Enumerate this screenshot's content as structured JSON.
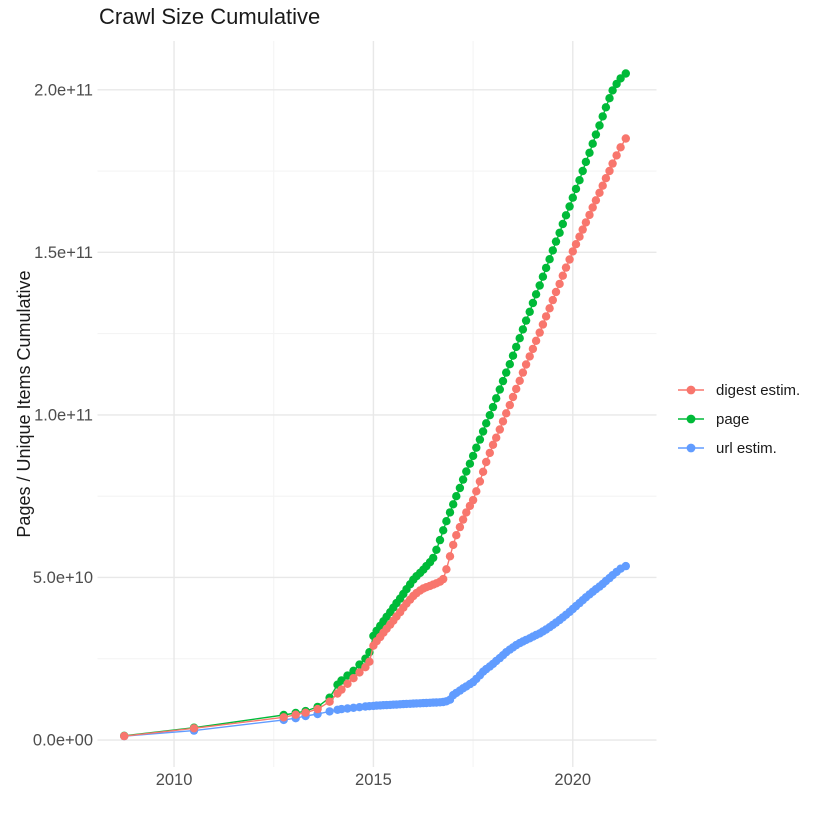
{
  "chart_data": {
    "type": "line",
    "markers": true,
    "title": "Crawl Size Cumulative",
    "xlabel": "",
    "ylabel": "Pages / Unique Items Cumulative",
    "value_unit": "pages, stored in billions (1e9)",
    "grid": true,
    "legend_position": "right",
    "xlim": [
      2008.08,
      2022.1
    ],
    "ylim_billions": [
      -8.3,
      215
    ],
    "x_ticks": {
      "values": [
        2010,
        2015,
        2020
      ],
      "labels": [
        "2010",
        "2015",
        "2020"
      ]
    },
    "x_minor_ticks": [
      2012.5,
      2017.5
    ],
    "y_ticks": {
      "values_billions": [
        0,
        50,
        100,
        150,
        200
      ],
      "labels": [
        "0.0e+00",
        "5.0e+10",
        "1.0e+11",
        "1.5e+11",
        "2.0e+11"
      ]
    },
    "y_minor_ticks_billions": [
      25,
      75,
      125,
      175
    ],
    "colors": {
      "grid_major": "#E8E8E8",
      "grid_minor": "#F4F4F4",
      "tick_text": "#4D4D4D",
      "title_text": "#1A1A1A"
    },
    "series": [
      {
        "name": "digest estim.",
        "color": "#F8766D",
        "points_year_billions": [
          [
            2008.75,
            1.2
          ],
          [
            2010.5,
            3.6
          ],
          [
            2012.75,
            7.0
          ],
          [
            2013.05,
            7.8
          ],
          [
            2013.3,
            8.4
          ],
          [
            2013.6,
            9.5
          ],
          [
            2013.9,
            11.8
          ],
          [
            2014.1,
            14.3
          ],
          [
            2014.2,
            15.5
          ],
          [
            2014.35,
            17.3
          ],
          [
            2014.5,
            19.0
          ],
          [
            2014.65,
            20.8
          ],
          [
            2014.8,
            22.4
          ],
          [
            2014.9,
            24.1
          ],
          [
            2015.0,
            29.0
          ],
          [
            2015.08,
            30.4
          ],
          [
            2015.17,
            31.7
          ],
          [
            2015.25,
            33.0
          ],
          [
            2015.33,
            34.2
          ],
          [
            2015.42,
            35.5
          ],
          [
            2015.5,
            36.7
          ],
          [
            2015.58,
            38.0
          ],
          [
            2015.67,
            39.3
          ],
          [
            2015.75,
            40.7
          ],
          [
            2015.83,
            42.0
          ],
          [
            2015.92,
            43.2
          ],
          [
            2016.0,
            44.3
          ],
          [
            2016.08,
            45.2
          ],
          [
            2016.17,
            46.0
          ],
          [
            2016.25,
            46.6
          ],
          [
            2016.33,
            47.0
          ],
          [
            2016.42,
            47.4
          ],
          [
            2016.5,
            47.8
          ],
          [
            2016.58,
            48.2
          ],
          [
            2016.67,
            48.7
          ],
          [
            2016.75,
            49.5
          ],
          [
            2016.83,
            52.5
          ],
          [
            2016.92,
            56.5
          ],
          [
            2017.0,
            60.0
          ],
          [
            2017.08,
            63.0
          ],
          [
            2017.17,
            65.5
          ],
          [
            2017.25,
            67.8
          ],
          [
            2017.33,
            70.0
          ],
          [
            2017.42,
            72.0
          ],
          [
            2017.5,
            73.8
          ],
          [
            2017.58,
            76.5
          ],
          [
            2017.67,
            79.5
          ],
          [
            2017.75,
            82.5
          ],
          [
            2017.83,
            85.5
          ],
          [
            2017.92,
            88.3
          ],
          [
            2018.0,
            90.8
          ],
          [
            2018.08,
            93.0
          ],
          [
            2018.17,
            95.5
          ],
          [
            2018.25,
            98.0
          ],
          [
            2018.33,
            100.5
          ],
          [
            2018.42,
            103.0
          ],
          [
            2018.5,
            105.5
          ],
          [
            2018.58,
            108.0
          ],
          [
            2018.67,
            110.5
          ],
          [
            2018.75,
            113.0
          ],
          [
            2018.83,
            115.5
          ],
          [
            2018.92,
            118.0
          ],
          [
            2019.0,
            120.3
          ],
          [
            2019.08,
            122.8
          ],
          [
            2019.17,
            125.3
          ],
          [
            2019.25,
            127.8
          ],
          [
            2019.33,
            130.3
          ],
          [
            2019.42,
            132.8
          ],
          [
            2019.5,
            135.3
          ],
          [
            2019.58,
            137.8
          ],
          [
            2019.67,
            140.3
          ],
          [
            2019.75,
            142.8
          ],
          [
            2019.83,
            145.3
          ],
          [
            2019.92,
            147.8
          ],
          [
            2020.0,
            150.3
          ],
          [
            2020.08,
            152.5
          ],
          [
            2020.17,
            154.8
          ],
          [
            2020.25,
            157.0
          ],
          [
            2020.33,
            159.2
          ],
          [
            2020.42,
            161.5
          ],
          [
            2020.5,
            163.8
          ],
          [
            2020.58,
            166.0
          ],
          [
            2020.67,
            168.3
          ],
          [
            2020.75,
            170.5
          ],
          [
            2020.83,
            172.8
          ],
          [
            2020.92,
            175.0
          ],
          [
            2021.0,
            177.3
          ],
          [
            2021.1,
            179.8
          ],
          [
            2021.2,
            182.3
          ],
          [
            2021.33,
            185.0
          ]
        ]
      },
      {
        "name": "page",
        "color": "#00BA38",
        "points_year_billions": [
          [
            2008.75,
            1.3
          ],
          [
            2010.5,
            3.8
          ],
          [
            2012.75,
            7.7
          ],
          [
            2013.05,
            8.3
          ],
          [
            2013.3,
            8.9
          ],
          [
            2013.6,
            10.2
          ],
          [
            2013.9,
            13.0
          ],
          [
            2014.1,
            17.0
          ],
          [
            2014.2,
            18.3
          ],
          [
            2014.35,
            19.8
          ],
          [
            2014.5,
            21.3
          ],
          [
            2014.65,
            23.2
          ],
          [
            2014.8,
            25.0
          ],
          [
            2014.9,
            27.0
          ],
          [
            2015.0,
            32.0
          ],
          [
            2015.08,
            33.6
          ],
          [
            2015.17,
            35.1
          ],
          [
            2015.25,
            36.5
          ],
          [
            2015.33,
            37.9
          ],
          [
            2015.42,
            39.3
          ],
          [
            2015.5,
            40.7
          ],
          [
            2015.58,
            42.1
          ],
          [
            2015.67,
            43.5
          ],
          [
            2015.75,
            44.9
          ],
          [
            2015.83,
            46.4
          ],
          [
            2015.92,
            47.9
          ],
          [
            2016.0,
            49.3
          ],
          [
            2016.08,
            50.4
          ],
          [
            2016.17,
            51.4
          ],
          [
            2016.25,
            52.4
          ],
          [
            2016.33,
            53.5
          ],
          [
            2016.42,
            54.7
          ],
          [
            2016.5,
            56.0
          ],
          [
            2016.58,
            58.5
          ],
          [
            2016.67,
            61.5
          ],
          [
            2016.75,
            64.5
          ],
          [
            2016.83,
            67.3
          ],
          [
            2016.92,
            70.0
          ],
          [
            2017.0,
            72.5
          ],
          [
            2017.08,
            75.0
          ],
          [
            2017.17,
            77.5
          ],
          [
            2017.25,
            80.1
          ],
          [
            2017.33,
            82.6
          ],
          [
            2017.42,
            85.0
          ],
          [
            2017.5,
            87.4
          ],
          [
            2017.58,
            89.9
          ],
          [
            2017.67,
            92.4
          ],
          [
            2017.75,
            94.9
          ],
          [
            2017.83,
            97.4
          ],
          [
            2017.92,
            99.9
          ],
          [
            2018.0,
            102.4
          ],
          [
            2018.08,
            105.1
          ],
          [
            2018.17,
            107.8
          ],
          [
            2018.25,
            110.4
          ],
          [
            2018.33,
            113.0
          ],
          [
            2018.42,
            115.6
          ],
          [
            2018.5,
            118.2
          ],
          [
            2018.58,
            120.9
          ],
          [
            2018.67,
            123.6
          ],
          [
            2018.75,
            126.3
          ],
          [
            2018.83,
            129.0
          ],
          [
            2018.92,
            131.7
          ],
          [
            2019.0,
            134.4
          ],
          [
            2019.08,
            137.1
          ],
          [
            2019.17,
            139.8
          ],
          [
            2019.25,
            142.5
          ],
          [
            2019.33,
            145.2
          ],
          [
            2019.42,
            147.9
          ],
          [
            2019.5,
            150.6
          ],
          [
            2019.58,
            153.3
          ],
          [
            2019.67,
            156.0
          ],
          [
            2019.75,
            158.7
          ],
          [
            2019.83,
            161.4
          ],
          [
            2019.92,
            164.1
          ],
          [
            2020.0,
            166.8
          ],
          [
            2020.08,
            169.5
          ],
          [
            2020.17,
            172.2
          ],
          [
            2020.25,
            175.0
          ],
          [
            2020.33,
            177.8
          ],
          [
            2020.42,
            180.6
          ],
          [
            2020.5,
            183.4
          ],
          [
            2020.58,
            186.2
          ],
          [
            2020.67,
            189.0
          ],
          [
            2020.75,
            191.8
          ],
          [
            2020.83,
            194.6
          ],
          [
            2020.92,
            197.4
          ],
          [
            2021.0,
            199.8
          ],
          [
            2021.1,
            201.8
          ],
          [
            2021.2,
            203.5
          ],
          [
            2021.33,
            205.0
          ]
        ]
      },
      {
        "name": "url estim.",
        "color": "#619CFF",
        "points_year_billions": [
          [
            2008.75,
            1.2
          ],
          [
            2010.5,
            2.9
          ],
          [
            2012.75,
            6.2
          ],
          [
            2013.05,
            6.7
          ],
          [
            2013.3,
            7.4
          ],
          [
            2013.6,
            8.0
          ],
          [
            2013.9,
            8.8
          ],
          [
            2014.1,
            9.3
          ],
          [
            2014.2,
            9.5
          ],
          [
            2014.35,
            9.7
          ],
          [
            2014.5,
            9.9
          ],
          [
            2014.65,
            10.1
          ],
          [
            2014.8,
            10.3
          ],
          [
            2014.9,
            10.4
          ],
          [
            2015.0,
            10.5
          ],
          [
            2015.08,
            10.6
          ],
          [
            2015.17,
            10.65
          ],
          [
            2015.25,
            10.7
          ],
          [
            2015.33,
            10.75
          ],
          [
            2015.42,
            10.8
          ],
          [
            2015.5,
            10.85
          ],
          [
            2015.58,
            10.9
          ],
          [
            2015.67,
            11.0
          ],
          [
            2015.75,
            11.05
          ],
          [
            2015.83,
            11.1
          ],
          [
            2015.92,
            11.15
          ],
          [
            2016.0,
            11.2
          ],
          [
            2016.08,
            11.25
          ],
          [
            2016.17,
            11.3
          ],
          [
            2016.25,
            11.35
          ],
          [
            2016.33,
            11.4
          ],
          [
            2016.42,
            11.45
          ],
          [
            2016.5,
            11.5
          ],
          [
            2016.58,
            11.55
          ],
          [
            2016.67,
            11.6
          ],
          [
            2016.75,
            11.7
          ],
          [
            2016.83,
            11.9
          ],
          [
            2016.92,
            12.4
          ],
          [
            2017.0,
            13.8
          ],
          [
            2017.08,
            14.5
          ],
          [
            2017.17,
            15.2
          ],
          [
            2017.25,
            15.9
          ],
          [
            2017.33,
            16.5
          ],
          [
            2017.42,
            17.2
          ],
          [
            2017.5,
            17.8
          ],
          [
            2017.58,
            18.8
          ],
          [
            2017.67,
            19.9
          ],
          [
            2017.75,
            21.0
          ],
          [
            2017.83,
            21.8
          ],
          [
            2017.92,
            22.6
          ],
          [
            2018.0,
            23.4
          ],
          [
            2018.08,
            24.3
          ],
          [
            2018.17,
            25.2
          ],
          [
            2018.25,
            26.1
          ],
          [
            2018.33,
            27.0
          ],
          [
            2018.42,
            27.8
          ],
          [
            2018.5,
            28.5
          ],
          [
            2018.58,
            29.2
          ],
          [
            2018.67,
            29.8
          ],
          [
            2018.75,
            30.3
          ],
          [
            2018.83,
            30.8
          ],
          [
            2018.92,
            31.3
          ],
          [
            2019.0,
            31.8
          ],
          [
            2019.08,
            32.3
          ],
          [
            2019.17,
            32.8
          ],
          [
            2019.25,
            33.4
          ],
          [
            2019.33,
            34.0
          ],
          [
            2019.42,
            34.7
          ],
          [
            2019.5,
            35.4
          ],
          [
            2019.58,
            36.1
          ],
          [
            2019.67,
            36.9
          ],
          [
            2019.75,
            37.7
          ],
          [
            2019.83,
            38.5
          ],
          [
            2019.92,
            39.4
          ],
          [
            2020.0,
            40.3
          ],
          [
            2020.08,
            41.2
          ],
          [
            2020.17,
            42.1
          ],
          [
            2020.25,
            43.0
          ],
          [
            2020.33,
            43.9
          ],
          [
            2020.42,
            44.8
          ],
          [
            2020.5,
            45.6
          ],
          [
            2020.58,
            46.4
          ],
          [
            2020.67,
            47.2
          ],
          [
            2020.75,
            48.0
          ],
          [
            2020.83,
            48.9
          ],
          [
            2020.92,
            49.8
          ],
          [
            2021.0,
            50.7
          ],
          [
            2021.1,
            51.7
          ],
          [
            2021.2,
            52.7
          ],
          [
            2021.33,
            53.5
          ]
        ]
      }
    ]
  }
}
